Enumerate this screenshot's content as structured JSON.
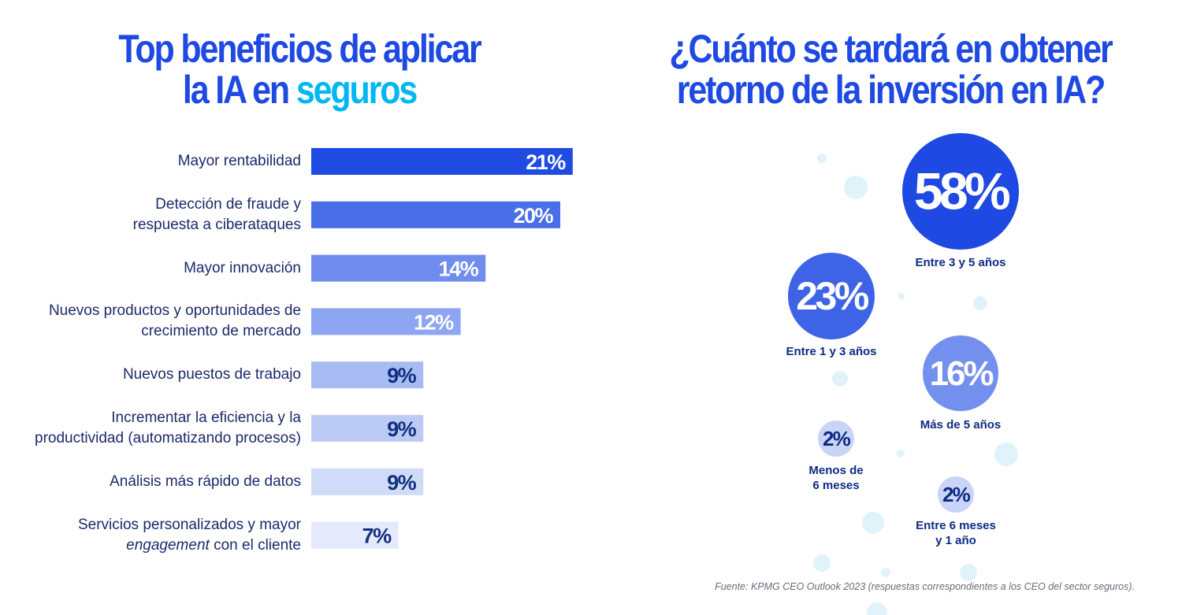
{
  "left_title": {
    "line1": "Top beneficios de aplicar",
    "line2_pre": "la IA en",
    "line2_highlight": "seguros"
  },
  "right_title": {
    "line1": "¿Cuánto se tardará en obtener",
    "line2": "retorno de la inversión en IA?"
  },
  "source": "Fuente: KPMG CEO Outlook 2023 (respuestas correspondientes a los CEO del sector seguros).",
  "chart_data": [
    {
      "type": "bar",
      "orientation": "horizontal",
      "categories": [
        [
          "Mayor rentabilidad"
        ],
        [
          "Detección de fraude y",
          "respuesta a ciberataques"
        ],
        [
          "Mayor innovación"
        ],
        [
          "Nuevos productos y oportunidades de",
          "crecimiento de mercado"
        ],
        [
          "Nuevos puestos de trabajo"
        ],
        [
          "Incrementar la eficiencia y la",
          "productividad (automatizando procesos)"
        ],
        [
          "Análisis más rápido de datos"
        ],
        [
          "Servicios personalizados y mayor",
          "*engagement* con el cliente"
        ]
      ],
      "values": [
        21,
        20,
        14,
        12,
        9,
        9,
        9,
        7
      ],
      "value_labels": [
        "21%",
        "20%",
        "14%",
        "12%",
        "9%",
        "9%",
        "9%",
        "7%"
      ],
      "colors": [
        "#1f4be3",
        "#4a6ee8",
        "#6f8cee",
        "#8ea6f1",
        "#a9bbf4",
        "#bccbf6",
        "#d0dbf8",
        "#e4eafb"
      ],
      "label_colors": [
        "#ffffff",
        "#ffffff",
        "#ffffff",
        "#ffffff",
        "#12307f",
        "#12307f",
        "#12307f",
        "#12307f"
      ],
      "unit": "%"
    },
    {
      "type": "bubble",
      "items": [
        {
          "value": 58,
          "label": "58%",
          "caption": [
            "Entre 3 y 5 años"
          ],
          "color": "#1e49e2",
          "text_color": "#ffffff"
        },
        {
          "value": 23,
          "label": "23%",
          "caption": [
            "Entre 1 y 3 años"
          ],
          "color": "#3e63e6",
          "text_color": "#ffffff"
        },
        {
          "value": 16,
          "label": "16%",
          "caption": [
            "Más de 5 años"
          ],
          "color": "#7490ee",
          "text_color": "#ffffff"
        },
        {
          "value": 2,
          "label": "2%",
          "caption": [
            "Menos de",
            "6 meses"
          ],
          "color": "#c9d4f7",
          "text_color": "#0c2c84"
        },
        {
          "value": 2,
          "label": "2%",
          "caption": [
            "Entre 6 meses",
            "y 1 año"
          ],
          "color": "#c9d4f7",
          "text_color": "#0c2c84"
        }
      ]
    }
  ]
}
